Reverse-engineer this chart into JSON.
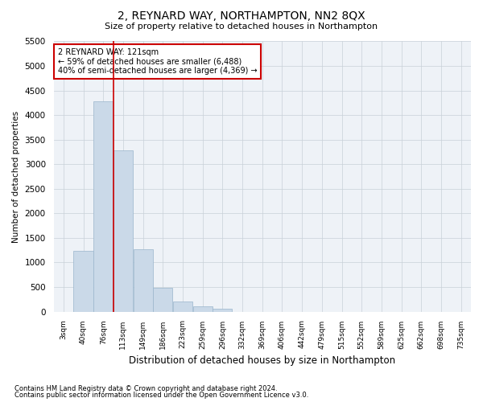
{
  "title1": "2, REYNARD WAY, NORTHAMPTON, NN2 8QX",
  "title2": "Size of property relative to detached houses in Northampton",
  "xlabel": "Distribution of detached houses by size in Northampton",
  "ylabel": "Number of detached properties",
  "footer1": "Contains HM Land Registry data © Crown copyright and database right 2024.",
  "footer2": "Contains public sector information licensed under the Open Government Licence v3.0.",
  "bar_color": "#cad9e8",
  "bar_edge_color": "#9ab5cc",
  "grid_color": "#c8d0d8",
  "annotation_box_color": "#cc0000",
  "vline_color": "#cc0000",
  "bg_color": "#eef2f7",
  "categories": [
    "3sqm",
    "40sqm",
    "76sqm",
    "113sqm",
    "149sqm",
    "186sqm",
    "223sqm",
    "259sqm",
    "296sqm",
    "332sqm",
    "369sqm",
    "406sqm",
    "442sqm",
    "479sqm",
    "515sqm",
    "552sqm",
    "589sqm",
    "625sqm",
    "662sqm",
    "698sqm",
    "735sqm"
  ],
  "values": [
    0,
    1230,
    4280,
    3280,
    1270,
    480,
    200,
    100,
    60,
    0,
    0,
    0,
    0,
    0,
    0,
    0,
    0,
    0,
    0,
    0,
    0
  ],
  "vline_x_idx": 2.5,
  "annotation_text1": "2 REYNARD WAY: 121sqm",
  "annotation_text2": "← 59% of detached houses are smaller (6,488)",
  "annotation_text3": "40% of semi-detached houses are larger (4,369) →",
  "ylim": [
    0,
    5500
  ],
  "yticks": [
    0,
    500,
    1000,
    1500,
    2000,
    2500,
    3000,
    3500,
    4000,
    4500,
    5000,
    5500
  ],
  "figsize": [
    6.0,
    5.0
  ],
  "dpi": 100
}
